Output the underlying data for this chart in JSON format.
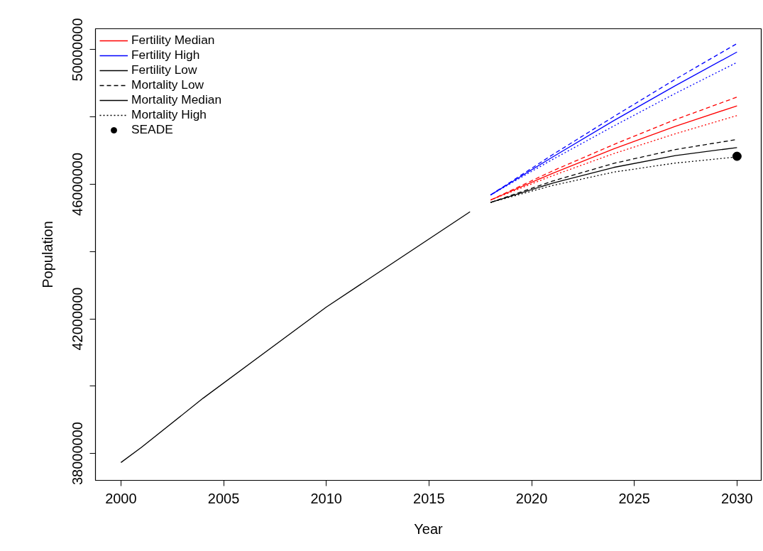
{
  "chart_data": {
    "type": "line",
    "xlabel": "Year",
    "ylabel": "Population",
    "xlim": [
      1998.76,
      2031.18
    ],
    "xticks": [
      2000,
      2005,
      2010,
      2015,
      2020,
      2025,
      2030
    ],
    "ylim": [
      37200000,
      50620000
    ],
    "yticks": [
      38000000,
      {
        "value": 40000000,
        "label": null
      },
      42000000,
      {
        "value": 44000000,
        "label": null
      },
      46000000,
      {
        "value": 48000000,
        "label": null
      },
      50000000
    ],
    "grid": false,
    "legend": "top left",
    "marker": "none",
    "series": [
      {
        "name": "Fertility Median",
        "color": "#ff0000",
        "line_style": "solid",
        "x": [
          2018,
          2021,
          2024,
          2027,
          2030
        ],
        "values": [
          45530000,
          46320000,
          47050000,
          47720000,
          48330000
        ]
      },
      {
        "name": "Fertility High",
        "color": "#0000ff",
        "line_style": "solid",
        "x": [
          2018,
          2021,
          2024,
          2027,
          2030
        ],
        "values": [
          45680000,
          46800000,
          47890000,
          48930000,
          49930000
        ]
      },
      {
        "name": "Fertility Low",
        "color": "#000000",
        "line_style": "solid",
        "x": [
          2018,
          2021,
          2024,
          2027,
          2030
        ],
        "values": [
          45460000,
          46030000,
          46500000,
          46850000,
          47090000
        ]
      },
      {
        "name": "Mortality Low",
        "color": "#000000",
        "line_style": "dashed",
        "x": [
          2018,
          2021,
          2024,
          2027,
          2030
        ],
        "values": [
          45460000,
          46090000,
          46620000,
          47030000,
          47330000
        ]
      },
      {
        "name": "Mortality Median",
        "color": "#000000",
        "line_style": "solid"
      },
      {
        "name": "Mortality High",
        "color": "#000000",
        "line_style": "dotted",
        "x": [
          2018,
          2021,
          2024,
          2027,
          2030
        ],
        "values": [
          45460000,
          45960000,
          46360000,
          46630000,
          46810000
        ]
      },
      {
        "name": "SEADE",
        "type": "scatter",
        "marker": "circle",
        "color": "#000000",
        "x": [
          2030
        ],
        "values": [
          46830000
        ]
      },
      {
        "color": "#000000",
        "line_style": "solid",
        "x": [
          2000,
          2001,
          2004,
          2010,
          2017
        ],
        "values": [
          37730000,
          38180000,
          39640000,
          42350000,
          45180000
        ]
      },
      {
        "color": "#ff0000",
        "line_style": "dashed",
        "x": [
          2018,
          2021,
          2024,
          2027,
          2030
        ],
        "values": [
          45530000,
          46390000,
          47180000,
          47920000,
          48590000
        ]
      },
      {
        "color": "#ff0000",
        "line_style": "dotted",
        "x": [
          2018,
          2021,
          2024,
          2027,
          2030
        ],
        "values": [
          45530000,
          46250000,
          46910000,
          47500000,
          48040000
        ]
      },
      {
        "color": "#0000ff",
        "line_style": "dashed",
        "x": [
          2018,
          2021,
          2024,
          2027,
          2030
        ],
        "values": [
          45680000,
          46870000,
          48010000,
          49120000,
          50180000
        ]
      },
      {
        "color": "#0000ff",
        "line_style": "dotted",
        "x": [
          2018,
          2021,
          2024,
          2027,
          2030
        ],
        "values": [
          45680000,
          46730000,
          47730000,
          48700000,
          49620000
        ]
      }
    ]
  }
}
